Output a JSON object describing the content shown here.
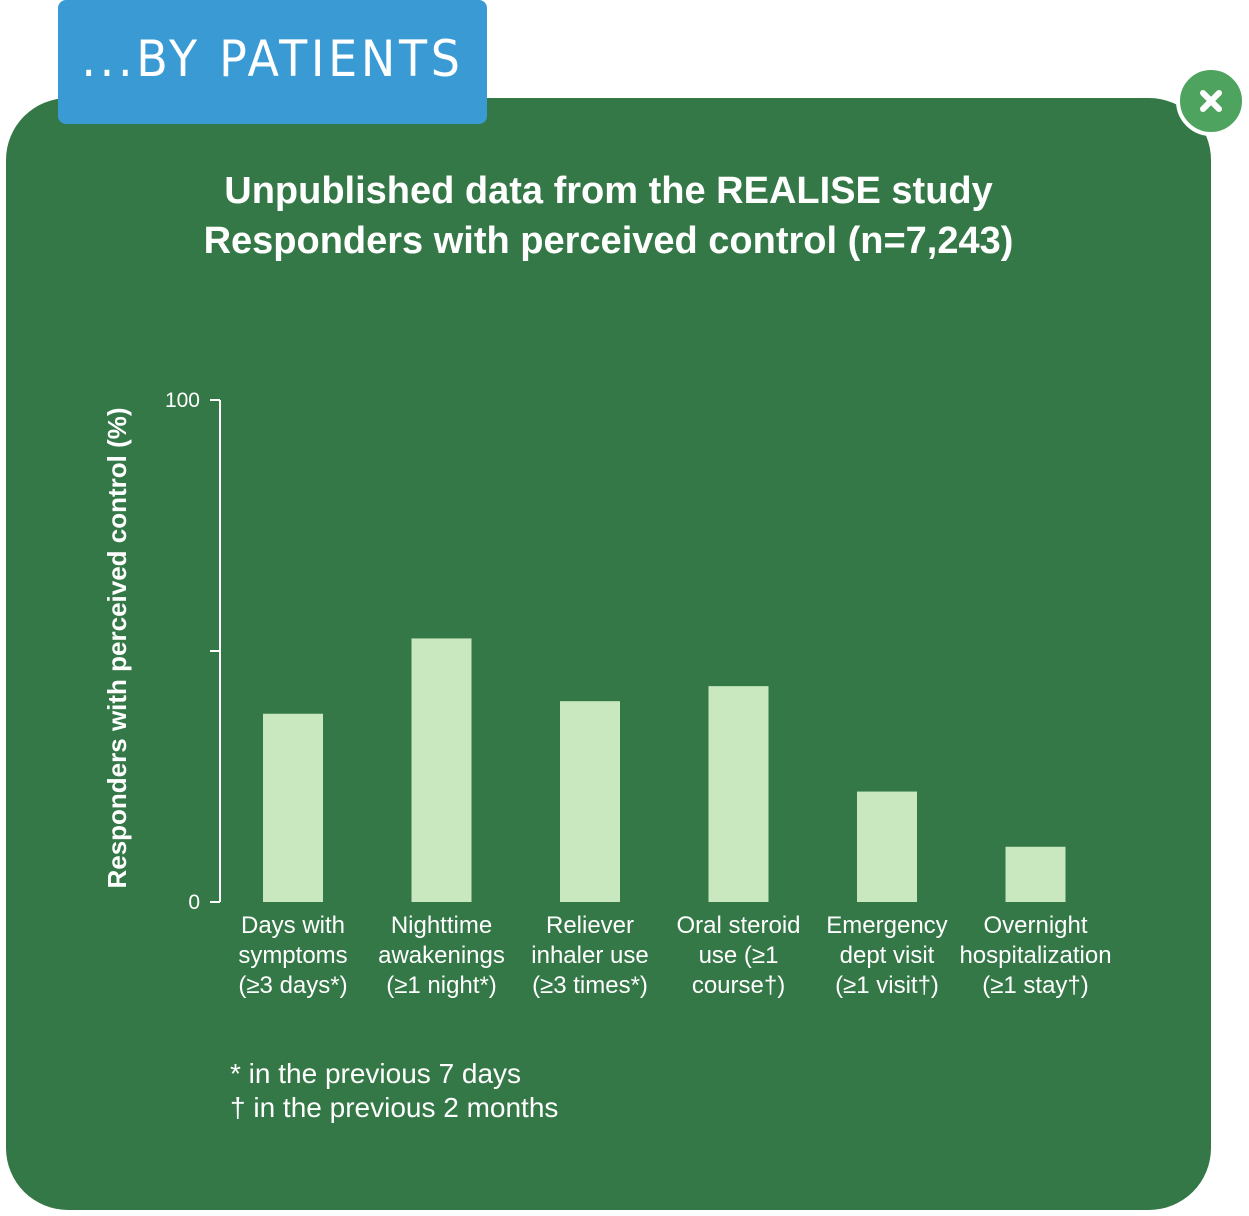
{
  "tab": {
    "label": "...BY PATIENTS"
  },
  "close_button": {
    "icon": "close-icon",
    "color": "#4ea45e"
  },
  "colors": {
    "panel": "#357847",
    "tab": "#3a9bd4",
    "bar": "#c9e8c0",
    "text": "#ffffff"
  },
  "chart_data": {
    "type": "bar",
    "title": "Unpublished data from the REALISE study",
    "subtitle": "Responders with perceived control (n=7,243)",
    "ylabel": "Responders with perceived control (%)",
    "xlabel": "",
    "ylim": [
      0,
      100
    ],
    "y_tick_labels": [
      "0",
      "100"
    ],
    "y_ticks": [
      0,
      50,
      100
    ],
    "categories": [
      [
        "Days with",
        "symptoms",
        "(≥3 days*)"
      ],
      [
        "Nighttime",
        "awakenings",
        "(≥1 night*)"
      ],
      [
        "Reliever",
        "inhaler use",
        "(≥3 times*)"
      ],
      [
        "Oral steroid",
        "use (≥1",
        "course†)"
      ],
      [
        "Emergency",
        "dept visit",
        "(≥1 visit†)"
      ],
      [
        "Overnight",
        "hospitalization",
        "(≥1 stay†)"
      ]
    ],
    "values": [
      37.5,
      52.5,
      40,
      43,
      22,
      11
    ],
    "grid": false,
    "legend": "none"
  },
  "footnotes": [
    "* in the previous 7 days",
    "† in the previous 2 months"
  ]
}
